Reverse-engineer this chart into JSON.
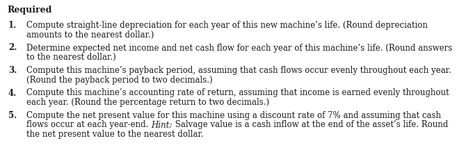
{
  "title": "Required",
  "bg_color": "#ffffff",
  "text_color": "#1a1a1a",
  "font_size": 8.5,
  "title_font_size": 9.0,
  "fig_width": 6.57,
  "fig_height": 2.42,
  "dpi": 100,
  "items": [
    {
      "number": "1.",
      "lines": [
        "Compute straight-line depreciation for each year of this new machine’s life. (Round depreciation",
        "amounts to the nearest dollar.)"
      ],
      "hint_line": -1
    },
    {
      "number": "2.",
      "lines": [
        "Determine expected net income and net cash flow for each year of this machine’s life. (Round answers",
        "to the nearest dollar.)"
      ],
      "hint_line": -1
    },
    {
      "number": "3.",
      "lines": [
        "Compute this machine’s payback period, assuming that cash flows occur evenly throughout each year.",
        "(Round the payback period to two decimals.)"
      ],
      "hint_line": -1
    },
    {
      "number": "4.",
      "lines": [
        "Compute this machine’s accounting rate of return, assuming that income is earned evenly throughout",
        "each year. (Round the percentage return to two decimals.)"
      ],
      "hint_line": -1
    },
    {
      "number": "5.",
      "lines": [
        "Compute the net present value for this machine using a discount rate of 7% and assuming that cash",
        "flows occur at each year-end. ||Hint:|| Salvage value is a cash inflow at the end of the asset’s life. Round",
        "the net present value to the nearest dollar."
      ],
      "hint_line": 1
    }
  ]
}
